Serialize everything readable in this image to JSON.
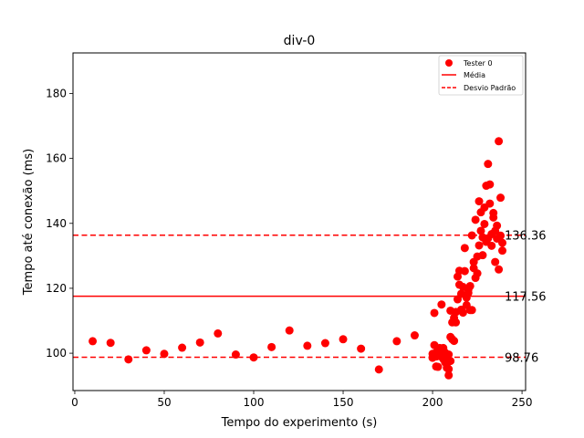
{
  "chart_data": {
    "type": "scatter",
    "title": "div-0",
    "xlabel": "Tempo do experimento (s)",
    "ylabel": "Tempo até conexão (ms)",
    "xlim": [
      -1,
      252
    ],
    "ylim": [
      88.5,
      192.5
    ],
    "xticks": [
      0,
      50,
      100,
      150,
      200,
      250
    ],
    "yticks": [
      100,
      120,
      140,
      160,
      180
    ],
    "grid": false,
    "legend_position": "upper-right",
    "series": [
      {
        "name": "Tester 0",
        "color": "#ff0000",
        "x": [
          10,
          20,
          30,
          40,
          50,
          60,
          70,
          80,
          90,
          100,
          110,
          120,
          130,
          140,
          150,
          160,
          170,
          180,
          190,
          200,
          200,
          201,
          201,
          202,
          202,
          202,
          203,
          203,
          204,
          204,
          204,
          205,
          205,
          206,
          206,
          206,
          207,
          207,
          208,
          208,
          208,
          209,
          209,
          209,
          210,
          210,
          210,
          211,
          211,
          212,
          212,
          213,
          213,
          214,
          214,
          215,
          215,
          216,
          216,
          217,
          217,
          218,
          218,
          219,
          219,
          220,
          220,
          221,
          221,
          222,
          222,
          223,
          223,
          224,
          224,
          225,
          225,
          226,
          226,
          227,
          227,
          228,
          228,
          229,
          229,
          230,
          230,
          231,
          231,
          232,
          232,
          233,
          233,
          234,
          234,
          235,
          235,
          236,
          236,
          237,
          237,
          238,
          238,
          239,
          239
        ],
        "y": [
          103.7,
          103.2,
          98.1,
          100.9,
          99.8,
          101.7,
          103.3,
          106.1,
          99.6,
          98.7,
          101.9,
          107.0,
          102.3,
          103.1,
          104.3,
          101.4,
          95.0,
          103.7,
          105.5,
          99.8,
          98.6,
          102.5,
          112.4,
          100.2,
          95.9,
          99.0,
          101.4,
          95.8,
          100.3,
          99.1,
          101.6,
          115.0,
          100.8,
          98.2,
          101.6,
          99.3,
          100.2,
          97.2,
          96.8,
          98.6,
          95.5,
          99.6,
          95.1,
          93.2,
          105.0,
          97.6,
          113.1,
          109.5,
          104.3,
          110.9,
          103.8,
          112.7,
          109.5,
          123.6,
          116.6,
          125.4,
          121.1,
          118.3,
          113.4,
          120.4,
          112.5,
          132.4,
          125.3,
          114.8,
          117.1,
          118.6,
          119.6,
          120.7,
          113.3,
          136.3,
          113.3,
          128.1,
          126.2,
          123.2,
          141.1,
          129.8,
          124.6,
          133.2,
          146.8,
          137.7,
          143.4,
          130.2,
          135.7,
          139.8,
          144.9,
          151.6,
          134.3,
          135.4,
          158.3,
          152.0,
          146.1,
          136.7,
          133.1,
          141.8,
          143.2,
          128.1,
          137.7,
          135.3,
          139.3,
          125.8,
          165.3,
          147.9,
          136.2,
          131.6,
          134.0
        ]
      }
    ],
    "hlines": [
      {
        "name": "Média",
        "value": 117.56,
        "label": "117.56",
        "style": "solid",
        "color": "#ff0000"
      },
      {
        "name": "Desvio Padrão",
        "value": 136.36,
        "label": "136.36",
        "style": "dashed",
        "color": "#ff0000"
      },
      {
        "name": "Desvio Padrão",
        "value": 98.76,
        "label": "98.76",
        "style": "dashed",
        "color": "#ff0000"
      }
    ]
  }
}
